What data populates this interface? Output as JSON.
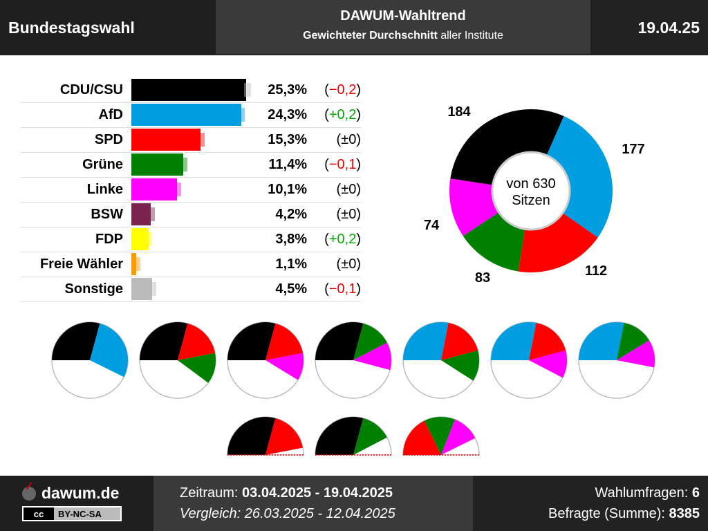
{
  "header": {
    "left": "Bundestagswahl",
    "title": "DAWUM-Wahltrend",
    "subtitle_bold": "Gewichteter Durchschnitt",
    "subtitle_rest": " aller Institute",
    "date": "19.04.25"
  },
  "footer": {
    "site": "dawum.de",
    "license_cc": "cc",
    "license": "BY-NC-SA",
    "period_label": "Zeitraum: ",
    "period_value": "03.04.2025 - 19.04.2025",
    "compare": "Vergleich: 26.03.2025 - 12.04.2025",
    "polls_label": "Wahlumfragen: ",
    "polls_value": "6",
    "respondents_label": "Befragte (Summe): ",
    "respondents_value": "8385"
  },
  "chart_data": [
    {
      "type": "bar",
      "orientation": "horizontal",
      "categories": [
        "CDU/CSU",
        "AfD",
        "SPD",
        "Grüne",
        "Linke",
        "BSW",
        "FDP",
        "Freie Wähler",
        "Sonstige"
      ],
      "values": [
        25.3,
        24.3,
        15.3,
        11.4,
        10.1,
        4.2,
        3.8,
        1.1,
        4.5
      ],
      "previous_values": [
        25.5,
        24.1,
        15.3,
        11.5,
        10.1,
        4.2,
        3.6,
        1.1,
        4.6
      ],
      "value_labels": [
        "25,3%",
        "24,3%",
        "15,3%",
        "11,4%",
        "10,1%",
        "4,2%",
        "3,8%",
        "1,1%",
        "4,5%"
      ],
      "change_labels": [
        "(−0,2)",
        "(+0,2)",
        "(±0)",
        "(−0,1)",
        "(±0)",
        "(±0)",
        "(+0,2)",
        "(±0)",
        "(−0,1)"
      ],
      "change_signs": [
        "neg",
        "pos",
        "par",
        "neg",
        "par",
        "par",
        "pos",
        "par",
        "neg"
      ],
      "colors": [
        "#000000",
        "#009ee0",
        "#ff0000",
        "#008000",
        "#ff00ff",
        "#7b2450",
        "#ffff00",
        "#ff9900",
        "#bbbbbb"
      ],
      "xlim": [
        0,
        26
      ]
    },
    {
      "type": "pie",
      "variant": "donut",
      "center_text": [
        "von 630",
        "Sitzen"
      ],
      "total": 630,
      "slices": [
        {
          "party": "CDU/CSU",
          "seats": 184,
          "color": "#000000"
        },
        {
          "party": "AfD",
          "seats": 177,
          "color": "#009ee0"
        },
        {
          "party": "SPD",
          "seats": 112,
          "color": "#ff0000"
        },
        {
          "party": "Grüne",
          "seats": 83,
          "color": "#008000"
        },
        {
          "party": "Linke",
          "seats": 74,
          "color": "#ff00ff"
        }
      ],
      "labels": [
        "184",
        "177",
        "112",
        "83",
        "74"
      ]
    },
    {
      "type": "pie",
      "variant": "coalition-circles",
      "total": 630,
      "coalitions": [
        [
          "CDU/CSU",
          "AfD"
        ],
        [
          "CDU/CSU",
          "SPD",
          "Grüne"
        ],
        [
          "CDU/CSU",
          "SPD",
          "Linke"
        ],
        [
          "CDU/CSU",
          "Grüne",
          "Linke"
        ],
        [
          "AfD",
          "SPD",
          "Grüne"
        ],
        [
          "AfD",
          "SPD",
          "Linke"
        ],
        [
          "AfD",
          "Grüne",
          "Linke"
        ],
        [
          "CDU/CSU",
          "SPD"
        ],
        [
          "CDU/CSU",
          "Grüne"
        ],
        [
          "SPD",
          "Grüne",
          "Linke"
        ]
      ]
    }
  ]
}
